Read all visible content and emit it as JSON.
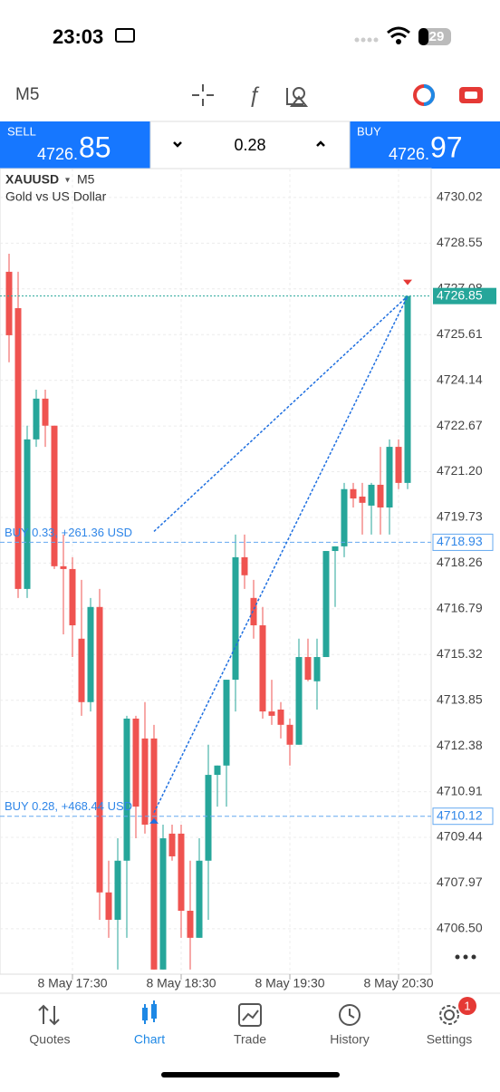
{
  "status_bar": {
    "time": "23:03",
    "battery": "29"
  },
  "toolbar": {
    "timeframe": "M5"
  },
  "trade_bar": {
    "sell_label": "SELL",
    "sell_price_main": "4726.",
    "sell_price_big": "85",
    "volume": "0.28",
    "buy_label": "BUY",
    "buy_price_main": "4726.",
    "buy_price_big": "97"
  },
  "chart_data": {
    "type": "candlestick",
    "symbol": "XAUUSD",
    "timeframe": "M5",
    "description": "Gold vs US Dollar",
    "open": [
      4727.63,
      4726.46,
      4717.43,
      4722.24,
      4723.55,
      4722.68,
      4718.16,
      4718.07,
      4715.83,
      4713.79,
      4716.85,
      4707.67,
      4706.79,
      4708.69,
      4713.26,
      4712.62,
      4712.62,
      4705.19,
      4709.56,
      4709.56,
      4707.08,
      4706.21,
      4708.69,
      4711.45,
      4711.75,
      4714.51,
      4718.45,
      4717.14,
      4716.26,
      4713.49,
      4713.55,
      4713.06,
      4712.42,
      4715.24,
      4714.46,
      4715.24,
      4718.65,
      4718.8,
      4720.64,
      4720.4,
      4720.11,
      4720.78,
      4720.05,
      4722.0,
      4720.84
    ],
    "high": [
      4728.21,
      4727.63,
      4722.68,
      4723.84,
      4723.84,
      4722.68,
      4719.18,
      4718.45,
      4717.72,
      4717.14,
      4717.43,
      4708.69,
      4709.41,
      4713.35,
      4713.35,
      4713.79,
      4713.06,
      4709.85,
      4709.85,
      4709.85,
      4708.69,
      4709.41,
      4712.42,
      4711.75,
      4714.51,
      4719.18,
      4719.18,
      4717.72,
      4716.85,
      4714.51,
      4713.79,
      4713.26,
      4715.83,
      4715.83,
      4715.83,
      4718.65,
      4718.8,
      4720.84,
      4720.84,
      4720.84,
      4720.84,
      4722.0,
      4722.24,
      4722.24,
      4726.85
    ],
    "low": [
      4724.72,
      4717.14,
      4717.14,
      4722.0,
      4722.0,
      4718.07,
      4715.97,
      4715.24,
      4713.35,
      4713.49,
      4706.79,
      4706.21,
      4705.19,
      4706.21,
      4709.41,
      4709.56,
      4705.19,
      4705.19,
      4708.69,
      4706.21,
      4705.19,
      4706.21,
      4706.79,
      4710.43,
      4710.43,
      4713.49,
      4717.43,
      4715.83,
      4713.26,
      4713.06,
      4712.62,
      4711.75,
      4712.42,
      4714.46,
      4713.55,
      4715.24,
      4716.85,
      4718.45,
      4720.05,
      4719.18,
      4719.18,
      4719.18,
      4719.18,
      4720.64,
      4720.64
    ],
    "close": [
      4725.59,
      4717.43,
      4722.24,
      4723.55,
      4722.68,
      4718.16,
      4718.07,
      4716.26,
      4713.79,
      4716.85,
      4707.67,
      4706.79,
      4708.69,
      4713.26,
      4710.43,
      4709.85,
      4705.19,
      4709.41,
      4708.83,
      4707.08,
      4706.21,
      4708.69,
      4711.45,
      4711.75,
      4714.51,
      4718.45,
      4717.87,
      4716.26,
      4713.49,
      4713.35,
      4713.06,
      4712.42,
      4715.24,
      4714.51,
      4715.24,
      4718.65,
      4718.8,
      4720.64,
      4720.34,
      4720.2,
      4720.78,
      4720.05,
      4722.0,
      4720.84,
      4726.85
    ],
    "xlim": [
      -1,
      46.6
    ],
    "xticks": [
      {
        "value": 7,
        "label": "8 May 17:30"
      },
      {
        "value": 19,
        "label": "8 May 18:30"
      },
      {
        "value": 31,
        "label": "8 May 19:30"
      },
      {
        "value": 43,
        "label": "8 May 20:30"
      }
    ],
    "ylim": [
      4705.04,
      4730.95
    ],
    "yticks": [
      4730.02,
      4728.55,
      4727.08,
      4725.61,
      4724.14,
      4722.67,
      {
        "value": 4721.2,
        "label": "4721.20"
      },
      4719.73,
      4718.26,
      4716.79,
      4715.32,
      4713.85,
      4712.38,
      4710.91,
      4709.44,
      4707.97,
      {
        "value": 4706.5,
        "label": "4706.50"
      }
    ],
    "grid": true,
    "up_color": "#26a69a",
    "down_color": "#ef5350",
    "bid": 4726.85,
    "positions": [
      {
        "label": "BUY 0.33, +261.36 USD",
        "price": 4718.93
      },
      {
        "label": "BUY 0.28, +468.44 USD",
        "price": 4710.12
      }
    ]
  },
  "tab_bar": {
    "tabs": [
      "Quotes",
      "Chart",
      "Trade",
      "History",
      "Settings"
    ],
    "badge": "1"
  }
}
